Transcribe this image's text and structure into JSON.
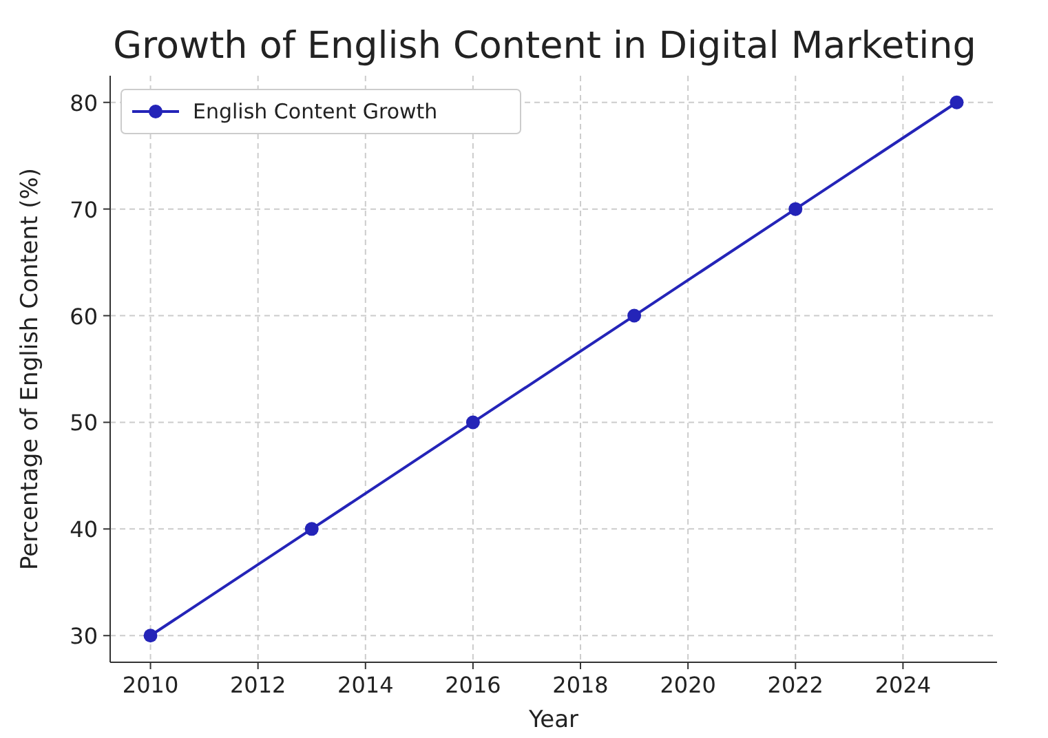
{
  "chart_data": {
    "type": "line",
    "title": "Growth of English Content in Digital Marketing",
    "xlabel": "Year",
    "ylabel": "Percentage of English Content (%)",
    "x": [
      2010,
      2013,
      2016,
      2019,
      2022,
      2025
    ],
    "series": [
      {
        "name": "English Content Growth",
        "color": "#2424b8",
        "values": [
          30,
          40,
          50,
          60,
          70,
          80
        ]
      }
    ],
    "xlim": [
      2009.25,
      2025.75
    ],
    "xticks": [
      2010,
      2012,
      2014,
      2016,
      2018,
      2020,
      2022,
      2024
    ],
    "ylim": [
      27.5,
      82.5
    ],
    "yticks": [
      30,
      40,
      50,
      60,
      70,
      80
    ],
    "grid": true,
    "legend": "top left",
    "marker": "circle",
    "line_style": "solid"
  }
}
